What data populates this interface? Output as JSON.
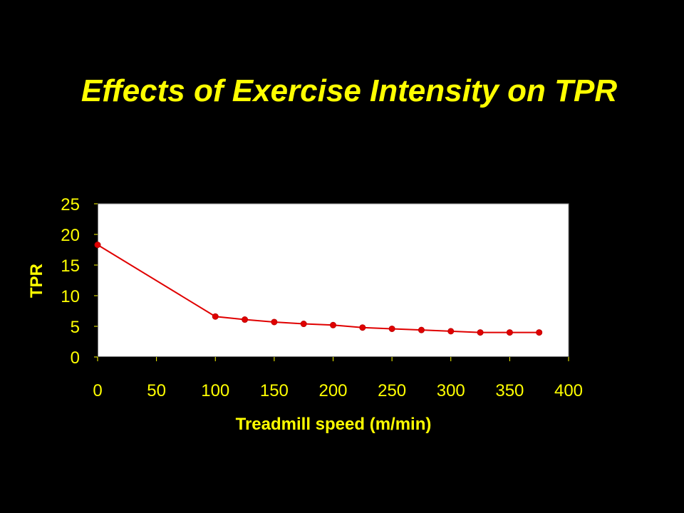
{
  "slide": {
    "title": "Effects of Exercise Intensity on TPR"
  },
  "colors": {
    "background": "#000000",
    "text": "#ffff00",
    "plot_area": "#ffffff",
    "series": "#e00000"
  },
  "chart_data": {
    "type": "line",
    "xlabel": "Treadmill speed (m/min)",
    "ylabel": "TPR",
    "xlim": [
      0,
      400
    ],
    "ylim": [
      0,
      25
    ],
    "xticks": [
      0,
      50,
      100,
      150,
      200,
      250,
      300,
      350,
      400
    ],
    "yticks": [
      0,
      5,
      10,
      15,
      20,
      25
    ],
    "grid": false,
    "legend": false,
    "series": [
      {
        "x": [
          0,
          100,
          125,
          150,
          175,
          200,
          225,
          250,
          275,
          300,
          325,
          350,
          375
        ],
        "y": [
          18.3,
          6.6,
          6.1,
          5.7,
          5.4,
          5.2,
          4.8,
          4.6,
          4.4,
          4.2,
          4.0,
          4.0,
          4.0
        ]
      }
    ]
  }
}
